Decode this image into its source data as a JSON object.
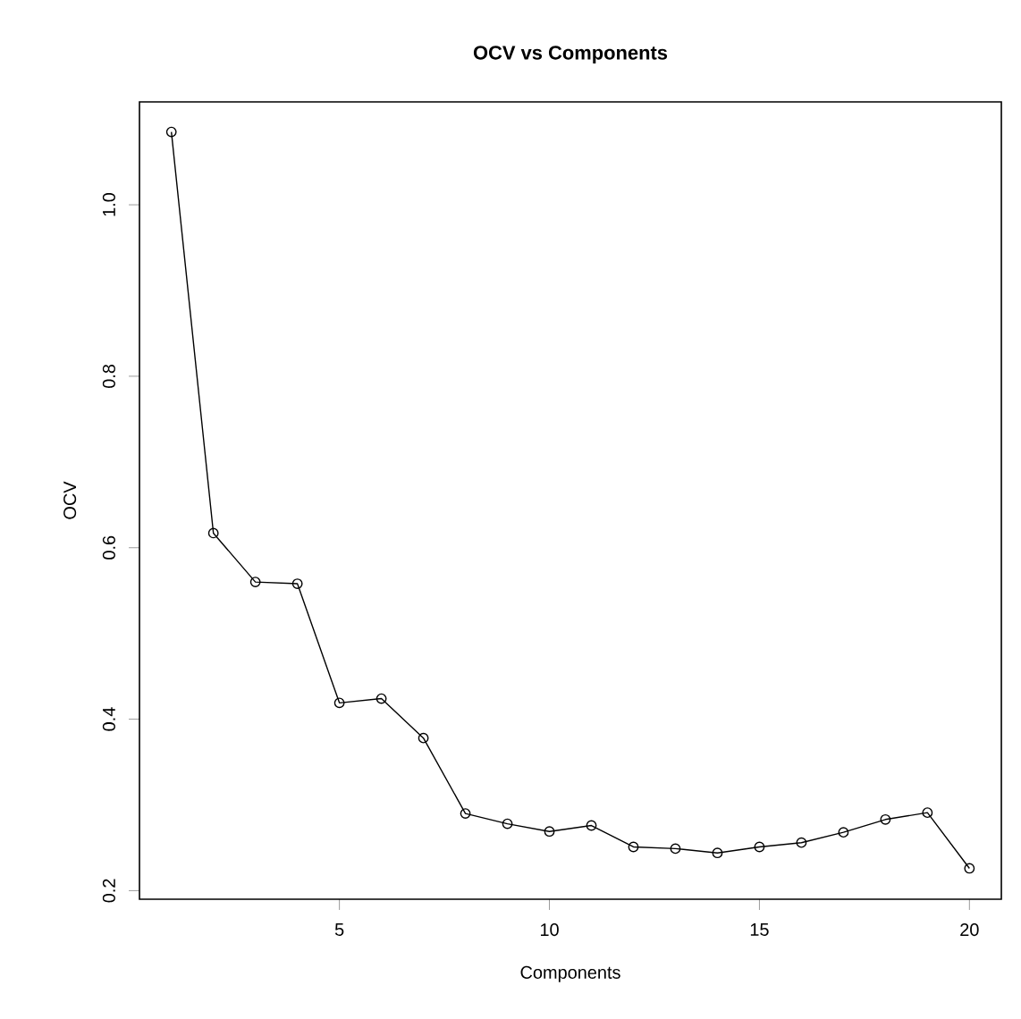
{
  "chart_data": {
    "type": "line",
    "title": "OCV vs Components",
    "xlabel": "Components",
    "ylabel": "OCV",
    "x": [
      1,
      2,
      3,
      4,
      5,
      6,
      7,
      8,
      9,
      10,
      11,
      12,
      13,
      14,
      15,
      16,
      17,
      18,
      19,
      20
    ],
    "series": [
      {
        "color": "#000000",
        "values": [
          1.085,
          0.617,
          0.56,
          0.558,
          0.419,
          0.424,
          0.378,
          0.29,
          0.278,
          0.269,
          0.276,
          0.251,
          0.249,
          0.244,
          0.251,
          0.256,
          0.268,
          0.283,
          0.291,
          0.226
        ]
      }
    ],
    "xlim": [
      0.24,
      20.76
    ],
    "ylim": [
      0.19,
      1.12
    ],
    "xticks": [
      5,
      10,
      15,
      20
    ],
    "yticks": [
      0.2,
      0.4,
      0.6,
      0.8,
      {
        "value": 1.0,
        "label": "1.0"
      }
    ],
    "marker": "circle",
    "line_style": "solid",
    "grid": false
  }
}
